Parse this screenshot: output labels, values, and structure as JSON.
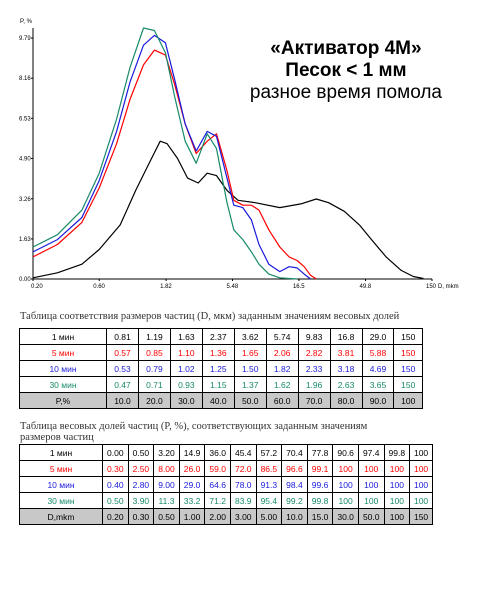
{
  "heading": {
    "line1": "«Активатор 4М»",
    "line2": "Песок < 1 мм",
    "line3": "разное время помола"
  },
  "chart_data": {
    "type": "line",
    "ylabel": "P, %",
    "xlabel": "D, mkm",
    "xscale": "log",
    "x_ticks": [
      "0.20",
      "0.60",
      "1.82",
      "5.48",
      "16.5",
      "49.8",
      "150"
    ],
    "x_tick_values": [
      0.2,
      0.6,
      1.82,
      5.48,
      16.5,
      49.8,
      150
    ],
    "y_ticks": [
      "0.00",
      "1.63",
      "3.26",
      "4.90",
      "6.53",
      "8.16",
      "9.79"
    ],
    "y_tick_values": [
      0,
      1.63,
      3.26,
      4.9,
      6.53,
      8.16,
      9.79
    ],
    "xlim": [
      0.2,
      150
    ],
    "ylim": [
      0,
      10.2
    ],
    "grid": false,
    "series": [
      {
        "name": "1 мин",
        "color": "#000000",
        "x": [
          0.2,
          0.3,
          0.45,
          0.6,
          0.85,
          1.1,
          1.4,
          1.65,
          1.85,
          2.2,
          2.6,
          3.1,
          3.6,
          4.2,
          5.0,
          6.0,
          8.0,
          12,
          17,
          22,
          27,
          35,
          45,
          55,
          70,
          90,
          110,
          130
        ],
        "y": [
          0.05,
          0.25,
          0.6,
          1.2,
          2.2,
          3.6,
          4.8,
          5.6,
          5.5,
          4.9,
          4.1,
          3.9,
          4.3,
          4.2,
          3.6,
          3.2,
          3.1,
          2.9,
          3.05,
          3.25,
          3.1,
          2.75,
          2.2,
          1.6,
          0.9,
          0.35,
          0.1,
          0.02
        ]
      },
      {
        "name": "5 мин",
        "color": "#ff0000",
        "x": [
          0.2,
          0.3,
          0.45,
          0.6,
          0.8,
          1.0,
          1.25,
          1.5,
          1.8,
          2.1,
          2.5,
          3.0,
          3.6,
          4.2,
          5.0,
          5.6,
          6.5,
          7.5,
          8.5,
          10,
          12,
          14,
          16,
          18,
          20,
          22
        ],
        "y": [
          0.9,
          1.4,
          2.3,
          3.7,
          5.5,
          7.3,
          8.7,
          9.3,
          9.1,
          7.9,
          6.3,
          5.1,
          5.6,
          5.9,
          4.4,
          3.2,
          3.0,
          3.0,
          2.8,
          2.0,
          1.3,
          0.9,
          0.75,
          0.5,
          0.15,
          0.0
        ]
      },
      {
        "name": "10 мин",
        "color": "#1a1adc",
        "x": [
          0.2,
          0.3,
          0.45,
          0.6,
          0.8,
          1.0,
          1.25,
          1.5,
          1.8,
          2.1,
          2.5,
          3.0,
          3.6,
          4.2,
          5.0,
          5.6,
          6.5,
          7.5,
          8.5,
          10,
          12,
          14,
          16,
          18,
          20
        ],
        "y": [
          1.1,
          1.6,
          2.5,
          4.0,
          6.0,
          8.0,
          9.5,
          9.9,
          9.6,
          8.1,
          6.3,
          5.2,
          6.0,
          5.8,
          4.1,
          3.0,
          2.9,
          2.4,
          1.4,
          0.6,
          0.3,
          0.5,
          0.45,
          0.2,
          0.0
        ]
      },
      {
        "name": "30 мин",
        "color": "#178a6a",
        "x": [
          0.2,
          0.3,
          0.45,
          0.6,
          0.8,
          1.0,
          1.25,
          1.5,
          1.8,
          2.1,
          2.5,
          3.0,
          3.6,
          4.2,
          5.0,
          5.6,
          6.5,
          7.5,
          8.5,
          10,
          12,
          14,
          16
        ],
        "y": [
          1.3,
          1.8,
          2.8,
          4.3,
          6.5,
          8.6,
          10.2,
          10.1,
          9.2,
          7.4,
          5.6,
          4.7,
          5.9,
          5.3,
          3.1,
          2.0,
          1.6,
          1.1,
          0.6,
          0.2,
          0.05,
          0.02,
          0.0
        ]
      }
    ]
  },
  "table1": {
    "caption": "Таблица соответствия размеров частиц (D, мкм) заданным значениям весовых долей",
    "rows": [
      {
        "label": "1 мин",
        "color": "#000000",
        "values": [
          "0.81",
          "1.19",
          "1.63",
          "2.37",
          "3.62",
          "5.74",
          "9.83",
          "16.8",
          "29.0",
          "150"
        ]
      },
      {
        "label": "5 мин",
        "color": "#ff0000",
        "values": [
          "0.57",
          "0.85",
          "1.10",
          "1.36",
          "1.65",
          "2.06",
          "2.82",
          "3.81",
          "5.88",
          "150"
        ]
      },
      {
        "label": "10 мин",
        "color": "#1a1adc",
        "values": [
          "0.53",
          "0.79",
          "1.02",
          "1.25",
          "1.50",
          "1.82",
          "2.33",
          "3.18",
          "4.69",
          "150"
        ]
      },
      {
        "label": "30 мин",
        "color": "#178a6a",
        "values": [
          "0.47",
          "0.71",
          "0.93",
          "1.15",
          "1.37",
          "1.62",
          "1.96",
          "2.63",
          "3.65",
          "150"
        ]
      },
      {
        "label": "P,%",
        "color": "#000000",
        "values": [
          "10.0",
          "20.0",
          "30.0",
          "40.0",
          "50.0",
          "60.0",
          "70.0",
          "80.0",
          "90.0",
          "100"
        ]
      }
    ]
  },
  "table2": {
    "caption_line1": "Таблица весовых долей частиц (P, %), соответствующих заданным значениям",
    "caption_line2": "размеров частиц",
    "rows": [
      {
        "label": "1 мин",
        "color": "#000000",
        "values": [
          "0.00",
          "0.50",
          "3.20",
          "14.9",
          "36.0",
          "45.4",
          "57.2",
          "70.4",
          "77.8",
          "90.6",
          "97.4",
          "99.8",
          "100"
        ]
      },
      {
        "label": "5 мин",
        "color": "#ff0000",
        "values": [
          "0.30",
          "2.50",
          "8.00",
          "26.0",
          "59.0",
          "72.0",
          "86.5",
          "96.6",
          "99.1",
          "100",
          "100",
          "100",
          "100"
        ]
      },
      {
        "label": "10 мин",
        "color": "#1a1adc",
        "values": [
          "0.40",
          "2.80",
          "9.00",
          "29.0",
          "64.6",
          "78.0",
          "91.3",
          "98.4",
          "99.6",
          "100",
          "100",
          "100",
          "100"
        ]
      },
      {
        "label": "30 мин",
        "color": "#178a6a",
        "values": [
          "0.50",
          "3.90",
          "11.3",
          "33.2",
          "71.2",
          "83.9",
          "95.4",
          "99.2",
          "99.8",
          "100",
          "100",
          "100",
          "100"
        ]
      },
      {
        "label": "D,mkm",
        "color": "#000000",
        "values": [
          "0.20",
          "0.30",
          "0.50",
          "1.00",
          "2.00",
          "3.00",
          "5.00",
          "10.0",
          "15.0",
          "30.0",
          "50.0",
          "100",
          "150"
        ]
      }
    ]
  }
}
